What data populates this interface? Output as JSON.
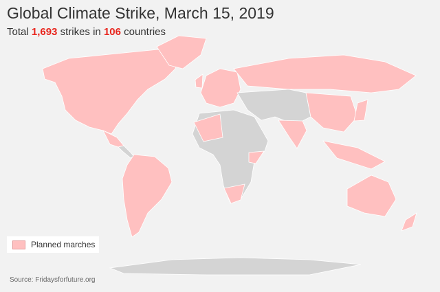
{
  "header": {
    "title": "Global Climate Strike, March 15, 2019",
    "subtitle": {
      "prefix": "Total",
      "strikes": "1,693",
      "middle": "strikes in",
      "countries": "106",
      "suffix": "countries"
    }
  },
  "legend": {
    "label": "Planned marches"
  },
  "source": "Source: Fridaysforfuture.org"
}
